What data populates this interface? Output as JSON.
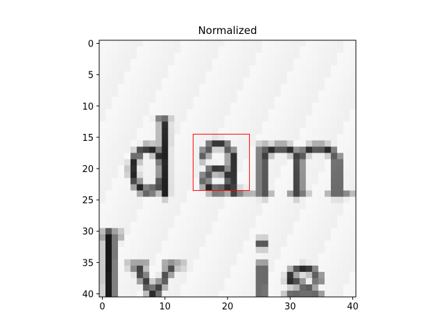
{
  "chart_data": {
    "type": "heatmap",
    "title": "Normalized",
    "colormap": "gray",
    "xlim": [
      -0.5,
      40.5
    ],
    "ylim": [
      40.5,
      -0.5
    ],
    "x_ticks": [
      0,
      10,
      20,
      30,
      40
    ],
    "y_ticks": [
      0,
      5,
      10,
      15,
      20,
      25,
      30,
      35,
      40
    ],
    "x_tick_labels": [
      "0",
      "10",
      "20",
      "30",
      "40"
    ],
    "y_tick_labels": [
      "0",
      "5",
      "10",
      "15",
      "20",
      "25",
      "30",
      "35",
      "40"
    ],
    "image_content": "grayscale crop of a scanned text line showing the word 'dam' with parts of 'lvis' below",
    "highlight_box": {
      "x0": 14.5,
      "x1": 23.5,
      "y0": 14.5,
      "y1": 23.5,
      "color": "#ff0000"
    }
  }
}
